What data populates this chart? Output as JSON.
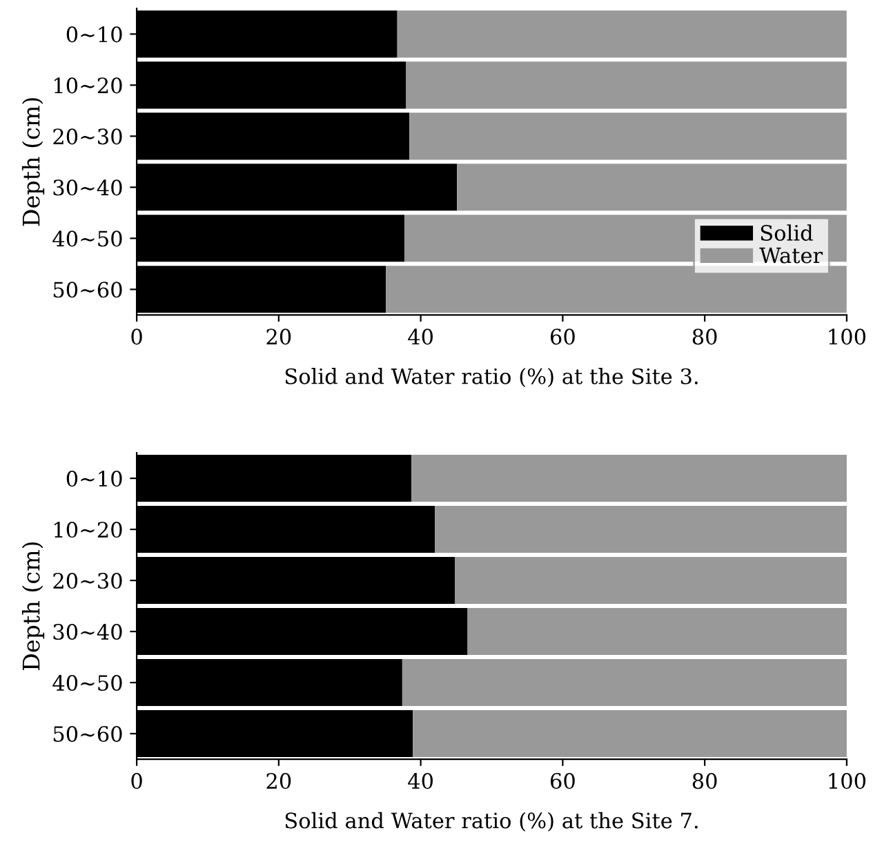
{
  "chart_data": [
    {
      "type": "bar",
      "orientation": "horizontal",
      "stacked": true,
      "categories": [
        "0~10",
        "10~20",
        "20~30",
        "30~40",
        "40~50",
        "50~60"
      ],
      "ylabel": "Depth (cm)",
      "xlabel": "Solid and Water ratio (%) at the Site 3.",
      "xlim": [
        0,
        100
      ],
      "xticks": [
        0,
        20,
        40,
        60,
        80,
        100
      ],
      "legend": "bottom right",
      "grid": false,
      "series": [
        {
          "name": "Solid",
          "color": "#000000",
          "values": [
            36.7,
            37.9,
            38.4,
            45.1,
            37.7,
            35.1
          ]
        },
        {
          "name": "Water",
          "color": "#999999",
          "values": [
            63.3,
            62.1,
            61.6,
            54.9,
            62.3,
            64.9
          ]
        }
      ]
    },
    {
      "type": "bar",
      "orientation": "horizontal",
      "stacked": true,
      "categories": [
        "0~10",
        "10~20",
        "20~30",
        "30~40",
        "40~50",
        "50~60"
      ],
      "ylabel": "Depth (cm)",
      "xlabel": "Solid and Water ratio (%) at the Site 7.",
      "xlim": [
        0,
        100
      ],
      "xticks": [
        0,
        20,
        40,
        60,
        80,
        100
      ],
      "legend": false,
      "grid": false,
      "series": [
        {
          "color": "#000000",
          "values": [
            38.7,
            42.0,
            44.8,
            46.6,
            37.4,
            38.9
          ]
        },
        {
          "color": "#999999",
          "values": [
            61.3,
            58.0,
            55.2,
            53.4,
            62.6,
            61.1
          ]
        }
      ]
    }
  ]
}
